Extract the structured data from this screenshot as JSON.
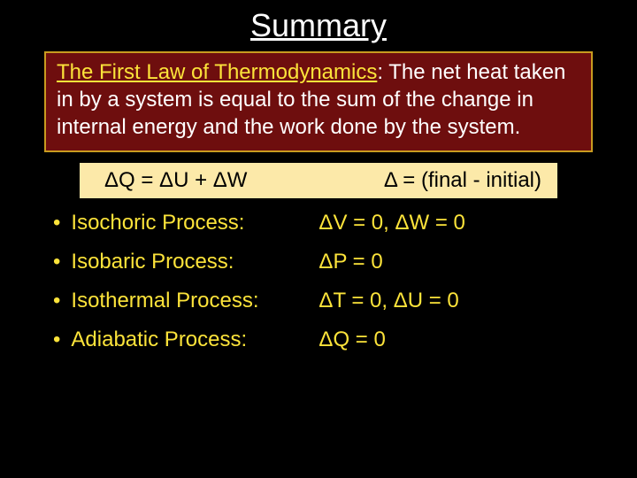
{
  "title": "Summary",
  "colors": {
    "background": "#000000",
    "title_text": "#ffffff",
    "box_bg": "#6e0e0e",
    "box_border": "#c89b1f",
    "box_text": "#ffffff",
    "highlight": "#fce33a",
    "eq_box_bg": "#fce9a9",
    "eq_text": "#000000"
  },
  "first_law": {
    "law_name": "The First Law of Thermodynamics",
    "body": ": The net heat taken in by a system is equal to the sum of the change in internal energy and the work done by the system."
  },
  "equation": {
    "left": "ΔQ = ΔU + ΔW",
    "right": "Δ = (final - initial)"
  },
  "processes": [
    {
      "name": "Isochoric Process:",
      "eq": "ΔV = 0,  ΔW = 0"
    },
    {
      "name": "Isobaric Process:",
      "eq": "ΔP = 0"
    },
    {
      "name": "Isothermal Process:",
      "eq": "ΔT = 0,  ΔU = 0"
    },
    {
      "name": "Adiabatic Process:",
      "eq": "ΔQ = 0"
    }
  ],
  "typography": {
    "title_fontsize": 36,
    "body_fontsize": 24,
    "title_font": "Comic Sans MS",
    "body_font": "Verdana"
  }
}
